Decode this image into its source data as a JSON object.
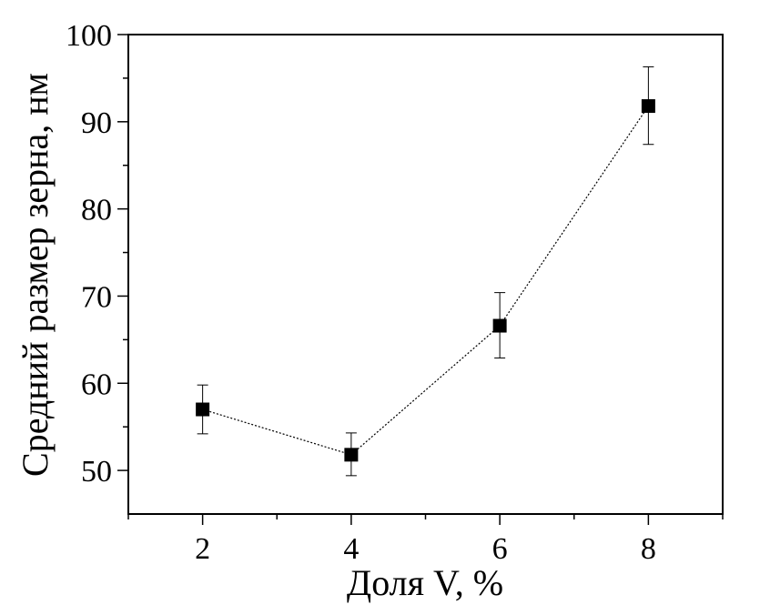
{
  "chart_data": {
    "type": "scatter",
    "title": "",
    "xlabel": "Доля V, %",
    "ylabel": "Средний размер зерна, нм",
    "xlim": [
      1,
      9
    ],
    "ylim": [
      45,
      100
    ],
    "x_ticks": [
      2,
      4,
      6,
      8
    ],
    "y_ticks": [
      50,
      60,
      70,
      80,
      90,
      100
    ],
    "grid": false,
    "legend": "none",
    "line_style": "dotted",
    "marker": "square",
    "colors": {
      "marker": "#000000",
      "line": "#000000",
      "axis": "#000000"
    },
    "series": [
      {
        "x": [
          2,
          4,
          6,
          8
        ],
        "y": [
          57.0,
          51.8,
          66.6,
          91.8
        ],
        "error_low": [
          54.2,
          49.4,
          62.9,
          87.4
        ],
        "error_high": [
          59.8,
          54.3,
          70.4,
          96.3
        ]
      }
    ]
  }
}
